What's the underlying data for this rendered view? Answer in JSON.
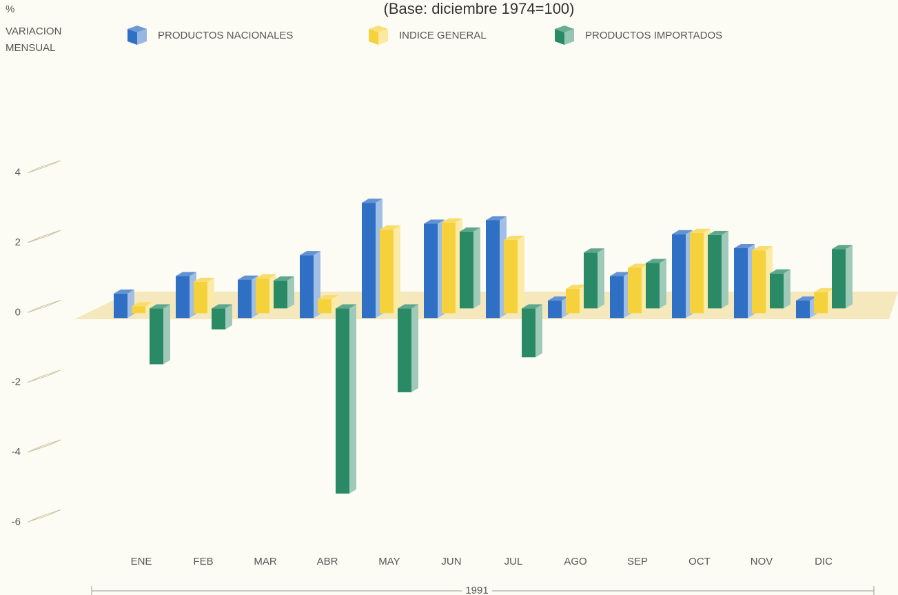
{
  "chart_data": {
    "type": "bar3d",
    "title": "(Base: diciembre 1974=100)",
    "y_label": [
      "%",
      "VARIACION",
      "MENSUAL"
    ],
    "x_group_label": "1991",
    "categories": [
      "ENE",
      "FEB",
      "MAR",
      "ABR",
      "MAY",
      "JUN",
      "JUL",
      "AGO",
      "SEP",
      "OCT",
      "NOV",
      "DIC"
    ],
    "series": [
      {
        "name": "PRODUCTOS NACIONALES",
        "color": "#2f6fc4",
        "values": [
          0.7,
          1.2,
          1.1,
          1.8,
          3.3,
          2.7,
          2.8,
          0.5,
          1.2,
          2.4,
          2.0,
          0.5
        ]
      },
      {
        "name": "INDICE GENERAL",
        "color": "#f5d23c",
        "values": [
          0.2,
          0.9,
          1.0,
          0.4,
          2.4,
          2.6,
          2.1,
          0.7,
          1.3,
          2.3,
          1.8,
          0.6
        ]
      },
      {
        "name": "PRODUCTOS IMPORTADOS",
        "color": "#2a8a66",
        "values": [
          -1.6,
          -0.6,
          0.8,
          -5.3,
          -2.4,
          2.2,
          -1.4,
          1.6,
          1.3,
          2.1,
          1.0,
          1.7
        ]
      }
    ],
    "ylim": [
      -7,
      5
    ],
    "yticks": [
      4,
      2,
      0,
      -2,
      -4,
      -6
    ]
  }
}
